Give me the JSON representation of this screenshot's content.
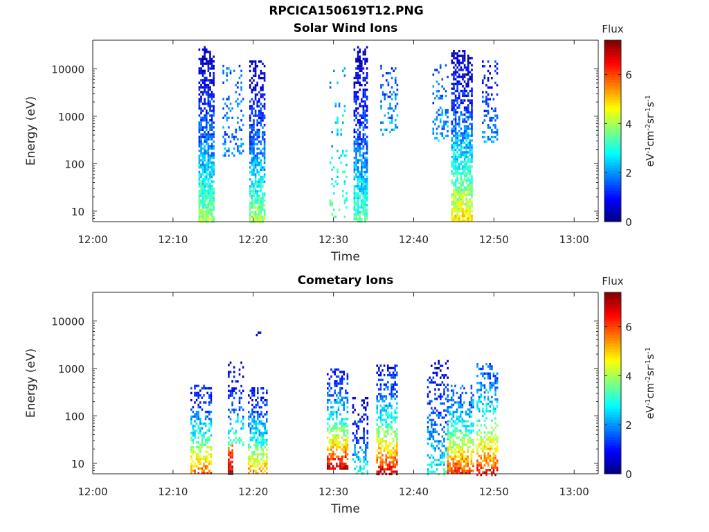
{
  "figure_title": "RPCICA150619T12.PNG",
  "chart_data": [
    {
      "type": "heatmap",
      "title": "Solar Wind Ions",
      "xlabel": "Time",
      "ylabel": "Energy (eV)",
      "y_scale": "log",
      "ylim": [
        6,
        40000
      ],
      "y_ticks": [
        10,
        100,
        1000,
        10000
      ],
      "y_tick_labels": [
        "10",
        "100",
        "1000",
        "10000"
      ],
      "xlim": [
        "12:00",
        "13:03"
      ],
      "x_ticks": [
        "12:00",
        "12:10",
        "12:20",
        "12:30",
        "12:40",
        "12:50",
        "13:00"
      ],
      "colorbar": {
        "title": "Flux",
        "label": "eV-1cm-2sr-1s-1",
        "ticks": [
          "0",
          "2",
          "4",
          "6"
        ],
        "range": [
          0,
          7.4
        ],
        "colormap": "jet"
      },
      "bursts": [
        {
          "t0": "12:13:10",
          "t1": "12:15:00",
          "emin": 6,
          "emax": 30000,
          "low_flux": 4.0,
          "high_flux": 0.5,
          "density": 0.78
        },
        {
          "t0": "12:16:10",
          "t1": "12:18:40",
          "emin": 150,
          "emax": 12000,
          "low_flux": 2.0,
          "high_flux": 1.6,
          "density": 0.22
        },
        {
          "t0": "12:19:30",
          "t1": "12:21:20",
          "emin": 6,
          "emax": 15000,
          "low_flux": 4.0,
          "high_flux": 0.5,
          "density": 0.72
        },
        {
          "t0": "12:29:30",
          "t1": "12:31:40",
          "emin": 8,
          "emax": 12000,
          "low_flux": 3.5,
          "high_flux": 2.0,
          "density": 0.12
        },
        {
          "t0": "12:32:30",
          "t1": "12:34:10",
          "emin": 6,
          "emax": 30000,
          "low_flux": 3.5,
          "high_flux": 0.5,
          "density": 0.72
        },
        {
          "t0": "12:35:50",
          "t1": "12:38:00",
          "emin": 400,
          "emax": 12000,
          "low_flux": 2.2,
          "high_flux": 1.5,
          "density": 0.25
        },
        {
          "t0": "12:42:20",
          "t1": "12:44:20",
          "emin": 300,
          "emax": 14000,
          "low_flux": 2.2,
          "high_flux": 1.5,
          "density": 0.25
        },
        {
          "t0": "12:44:40",
          "t1": "12:47:10",
          "emin": 6,
          "emax": 25000,
          "low_flux": 5.0,
          "high_flux": 0.5,
          "density": 0.72
        },
        {
          "t0": "12:48:30",
          "t1": "12:50:20",
          "emin": 300,
          "emax": 15000,
          "low_flux": 2.2,
          "high_flux": 1.0,
          "density": 0.3
        }
      ]
    },
    {
      "type": "heatmap",
      "title": "Cometary Ions",
      "xlabel": "Time",
      "ylabel": "Energy (eV)",
      "y_scale": "log",
      "ylim": [
        6,
        40000
      ],
      "y_ticks": [
        10,
        100,
        1000,
        10000
      ],
      "y_tick_labels": [
        "10",
        "100",
        "1000",
        "10000"
      ],
      "xlim": [
        "12:00",
        "13:03"
      ],
      "x_ticks": [
        "12:00",
        "12:10",
        "12:20",
        "12:30",
        "12:40",
        "12:50",
        "13:00"
      ],
      "colorbar": {
        "title": "Flux",
        "label": "eV-1cm-2sr-1s-1",
        "ticks": [
          "0",
          "2",
          "4",
          "6"
        ],
        "range": [
          0,
          7.4
        ],
        "colormap": "jet"
      },
      "bursts": [
        {
          "t0": "12:12:10",
          "t1": "12:14:50",
          "emin": 6,
          "emax": 450,
          "low_flux": 6.0,
          "high_flux": 1.0,
          "density": 0.55
        },
        {
          "t0": "12:16:50",
          "t1": "12:17:20",
          "emin": 6,
          "emax": 25,
          "low_flux": 7.0,
          "high_flux": 6.0,
          "density": 0.95
        },
        {
          "t0": "12:16:50",
          "t1": "12:18:40",
          "emin": 25,
          "emax": 1400,
          "low_flux": 3.5,
          "high_flux": 0.5,
          "density": 0.3
        },
        {
          "t0": "12:19:20",
          "t1": "12:21:40",
          "emin": 6,
          "emax": 400,
          "low_flux": 5.5,
          "high_flux": 1.0,
          "density": 0.55
        },
        {
          "t0": "12:20:20",
          "t1": "12:20:50",
          "emin": 5000,
          "emax": 6000,
          "low_flux": 0.5,
          "high_flux": 0.5,
          "density": 0.5
        },
        {
          "t0": "12:29:10",
          "t1": "12:31:40",
          "emin": 8,
          "emax": 1000,
          "low_flux": 7.0,
          "high_flux": 1.0,
          "density": 0.6
        },
        {
          "t0": "12:32:20",
          "t1": "12:34:10",
          "emin": 6,
          "emax": 250,
          "low_flux": 3.0,
          "high_flux": 0.5,
          "density": 0.4
        },
        {
          "t0": "12:35:20",
          "t1": "12:37:50",
          "emin": 6,
          "emax": 1200,
          "low_flux": 7.0,
          "high_flux": 1.0,
          "density": 0.55
        },
        {
          "t0": "12:41:40",
          "t1": "12:44:10",
          "emin": 6,
          "emax": 1500,
          "low_flux": 3.0,
          "high_flux": 0.8,
          "density": 0.35
        },
        {
          "t0": "12:44:10",
          "t1": "12:47:20",
          "emin": 6,
          "emax": 450,
          "low_flux": 6.5,
          "high_flux": 1.5,
          "density": 0.6
        },
        {
          "t0": "12:47:50",
          "t1": "12:50:20",
          "emin": 6,
          "emax": 1300,
          "low_flux": 6.5,
          "high_flux": 1.5,
          "density": 0.5
        }
      ]
    }
  ]
}
